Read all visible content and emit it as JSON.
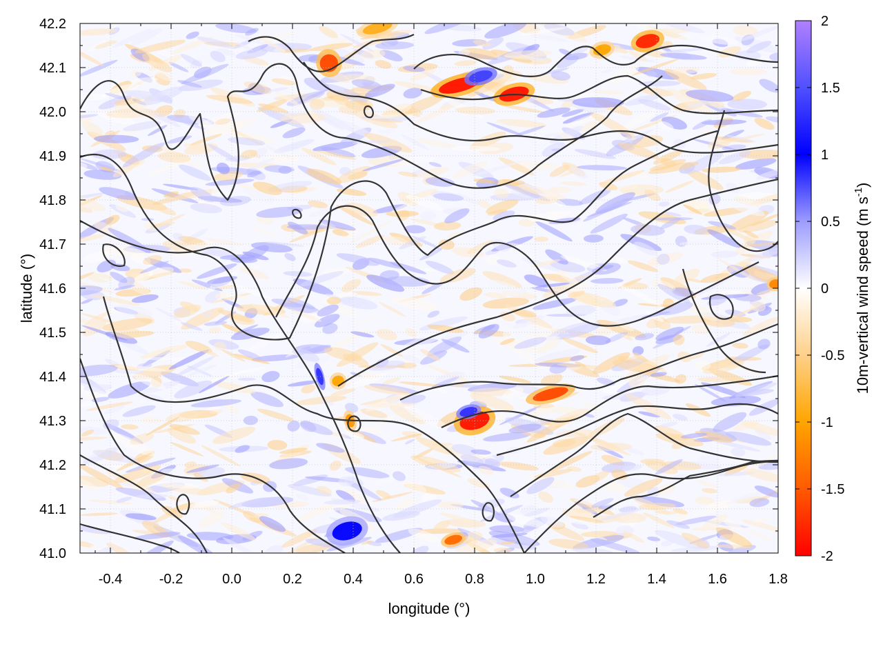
{
  "chart_data": {
    "type": "heatmap",
    "title": "",
    "xlabel": "longitude (°)",
    "ylabel": "latitude (°)",
    "colorbar_label": "10m-vertical wind speed (m s",
    "colorbar_label_sup": "-1",
    "colorbar_label_end": ")",
    "xlim": [
      -0.5,
      1.8
    ],
    "ylim": [
      41.0,
      42.2
    ],
    "clim": [
      -2,
      2
    ],
    "x_ticks": [
      -0.4,
      -0.2,
      0.0,
      0.2,
      0.4,
      0.6,
      0.8,
      1.0,
      1.2,
      1.4,
      1.6,
      1.8
    ],
    "x_tick_labels": [
      "-0.4",
      "-0.2",
      "0.0",
      "0.2",
      "0.4",
      "0.6",
      "0.8",
      "1.0",
      "1.2",
      "1.4",
      "1.6",
      "1.8"
    ],
    "y_ticks": [
      41.0,
      41.1,
      41.2,
      41.3,
      41.4,
      41.5,
      41.6,
      41.7,
      41.8,
      41.9,
      42.0,
      42.1,
      42.2
    ],
    "y_tick_labels": [
      "41.0",
      "41.1",
      "41.2",
      "41.3",
      "41.4",
      "41.5",
      "41.6",
      "41.7",
      "41.8",
      "41.9",
      "42.0",
      "42.1",
      "42.2"
    ],
    "colorbar_ticks": [
      -2,
      -1.5,
      -1,
      -0.5,
      0,
      0.5,
      1,
      1.5,
      2
    ],
    "colorbar_tick_labels": [
      "-2",
      "-1.5",
      "-1",
      "-0.5",
      "0",
      "0.5",
      "1",
      "1.5",
      "2"
    ],
    "colormap": [
      {
        "v": -2,
        "color": "#ff0000"
      },
      {
        "v": -1.5,
        "color": "#ff5a00"
      },
      {
        "v": -1,
        "color": "#ffa500"
      },
      {
        "v": -0.5,
        "color": "#ffd08a"
      },
      {
        "v": 0,
        "color": "#ffffff"
      },
      {
        "v": 0.5,
        "color": "#9c9cff"
      },
      {
        "v": 1,
        "color": "#0000ff"
      },
      {
        "v": 1.5,
        "color": "#5050ff"
      },
      {
        "v": 2,
        "color": "#b080ff"
      }
    ],
    "grid": true,
    "contour_color": "#333333",
    "hotspots": [
      {
        "lon": 0.75,
        "lat": 42.06,
        "value": -1.9,
        "rx": 0.07,
        "ry": 0.015
      },
      {
        "lon": 0.93,
        "lat": 42.04,
        "value": -1.9,
        "rx": 0.05,
        "ry": 0.015
      },
      {
        "lon": 0.82,
        "lat": 42.08,
        "value": 1.4,
        "rx": 0.04,
        "ry": 0.012
      },
      {
        "lon": 0.32,
        "lat": 42.11,
        "value": -1.6,
        "rx": 0.03,
        "ry": 0.02
      },
      {
        "lon": 1.37,
        "lat": 42.16,
        "value": -1.8,
        "rx": 0.04,
        "ry": 0.015
      },
      {
        "lon": 1.22,
        "lat": 42.14,
        "value": -1.0,
        "rx": 0.03,
        "ry": 0.012
      },
      {
        "lon": 0.48,
        "lat": 42.19,
        "value": -0.9,
        "rx": 0.05,
        "ry": 0.012
      },
      {
        "lon": 0.8,
        "lat": 41.3,
        "value": -1.9,
        "rx": 0.05,
        "ry": 0.02
      },
      {
        "lon": 0.78,
        "lat": 41.32,
        "value": 1.3,
        "rx": 0.03,
        "ry": 0.01
      },
      {
        "lon": 1.05,
        "lat": 41.36,
        "value": -1.6,
        "rx": 0.06,
        "ry": 0.012
      },
      {
        "lon": 0.35,
        "lat": 41.39,
        "value": -1.0,
        "rx": 0.02,
        "ry": 0.012
      },
      {
        "lon": 0.29,
        "lat": 41.4,
        "value": 1.3,
        "rx": 0.01,
        "ry": 0.02
      },
      {
        "lon": 0.39,
        "lat": 41.3,
        "value": -1.1,
        "rx": 0.015,
        "ry": 0.015
      },
      {
        "lon": 1.79,
        "lat": 41.61,
        "value": -1.2,
        "rx": 0.02,
        "ry": 0.01
      },
      {
        "lon": 0.73,
        "lat": 41.03,
        "value": -1.4,
        "rx": 0.03,
        "ry": 0.01
      },
      {
        "lon": 0.38,
        "lat": 41.05,
        "value": 1.0,
        "rx": 0.05,
        "ry": 0.02
      }
    ]
  }
}
